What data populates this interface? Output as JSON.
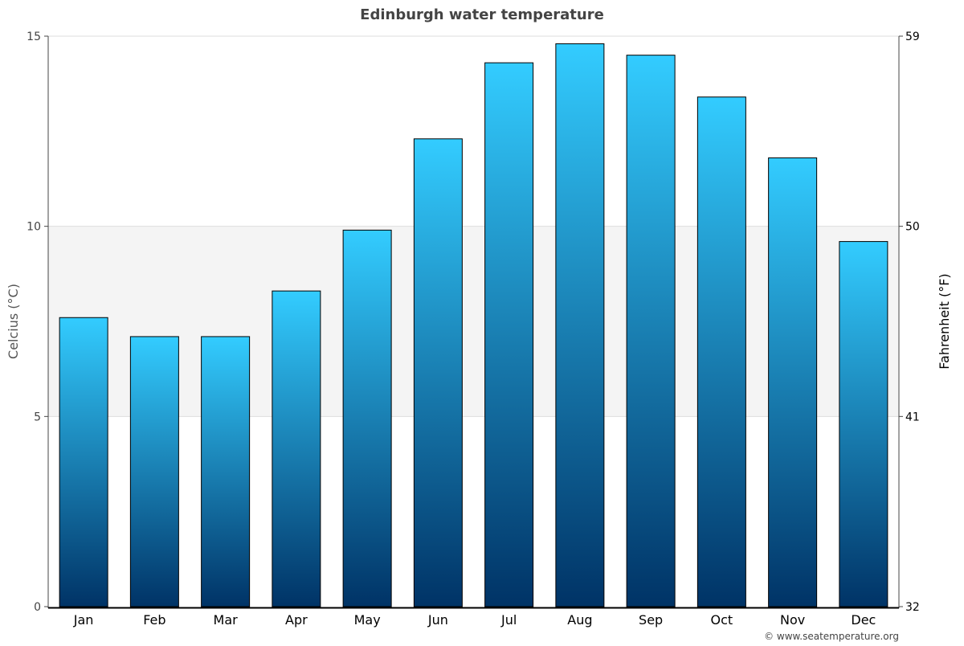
{
  "chart_data": {
    "type": "bar",
    "title": "Edinburgh water temperature",
    "ylabel": "Celcius (°C)",
    "ylabel_right": "Fahrenheit (°F)",
    "categories": [
      "Jan",
      "Feb",
      "Mar",
      "Apr",
      "May",
      "Jun",
      "Jul",
      "Aug",
      "Sep",
      "Oct",
      "Nov",
      "Dec"
    ],
    "values": [
      7.6,
      7.1,
      7.1,
      8.3,
      9.9,
      12.3,
      14.3,
      14.8,
      14.5,
      13.4,
      11.8,
      9.6
    ],
    "ylim": [
      0,
      15
    ],
    "yticks": [
      "0",
      "5",
      "10",
      "15"
    ],
    "yticks_right": [
      "32",
      "41",
      "50",
      "59"
    ],
    "grid": true,
    "shaded_band": [
      5,
      10
    ],
    "colors": {
      "bar_top": "#33ccff",
      "bar_bottom": "#003366",
      "band": "#f4f4f4",
      "title": "#444444"
    }
  },
  "credit": "© www.seatemperature.org"
}
